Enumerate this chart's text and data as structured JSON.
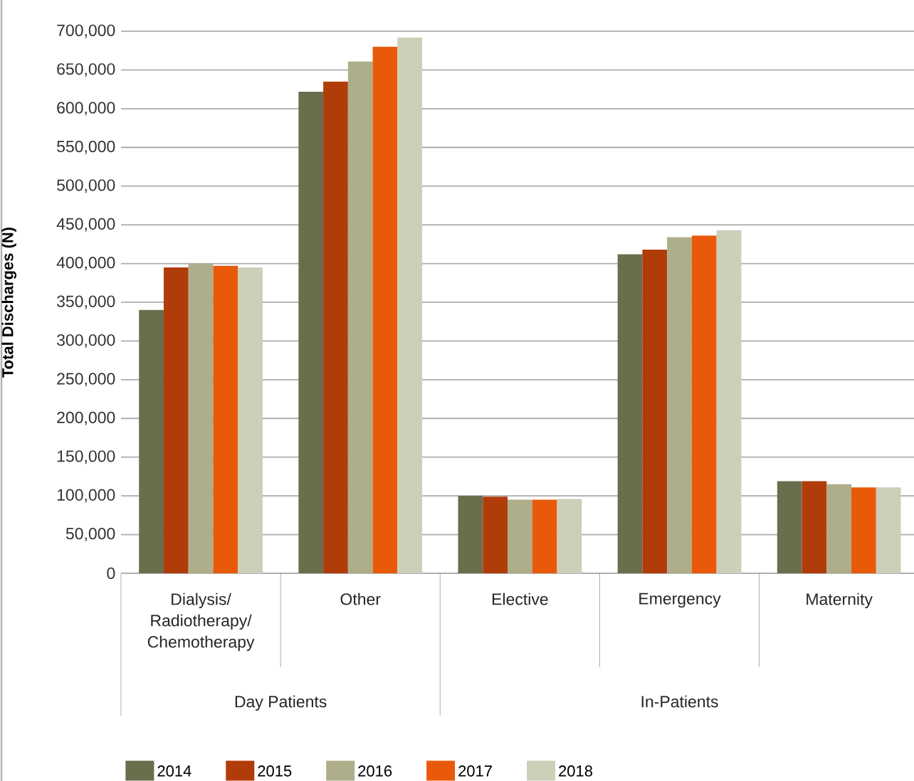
{
  "chart_data": {
    "type": "bar",
    "ylabel": "Total Discharges (N)",
    "categories": [
      "Dialysis/ Radiotherapy/ Chemotherapy",
      "Other",
      "Elective",
      "Emergency",
      "Maternity"
    ],
    "series": [
      {
        "name": "2014",
        "color": "#6b6e4d",
        "values": [
          340000,
          622000,
          100000,
          412000,
          119000
        ]
      },
      {
        "name": "2015",
        "color": "#b03c0a",
        "values": [
          395000,
          635000,
          99000,
          418000,
          119000
        ]
      },
      {
        "name": "2016",
        "color": "#aeae8a",
        "values": [
          400000,
          661000,
          95000,
          434000,
          115000
        ]
      },
      {
        "name": "2017",
        "color": "#e85a0a",
        "values": [
          397000,
          680000,
          95000,
          436000,
          111000
        ]
      },
      {
        "name": "2018",
        "color": "#cdcfb8",
        "values": [
          395000,
          692000,
          96000,
          443000,
          111000
        ]
      }
    ],
    "ylim": [
      0,
      700000
    ],
    "yticks": [
      0,
      {
        "value": 50000,
        "label": "50,000"
      },
      {
        "value": 100000,
        "label": "100,000"
      },
      {
        "value": 150000,
        "label": "150,000"
      },
      {
        "value": 200000,
        "label": "200,000"
      },
      {
        "value": 250000,
        "label": "250,000"
      },
      {
        "value": 300000,
        "label": "300,000"
      },
      {
        "value": 350000,
        "label": "350,000"
      },
      {
        "value": 400000,
        "label": "400,000"
      },
      {
        "value": 450000,
        "label": "450,000"
      },
      {
        "value": 500000,
        "label": "500,000"
      },
      {
        "value": 550000,
        "label": "550,000"
      },
      {
        "value": 600000,
        "label": "600,000"
      },
      {
        "value": 650000,
        "label": "650,000"
      },
      {
        "value": 700000,
        "label": "700,000"
      }
    ],
    "annotations": [
      "Day Patients",
      "In-Patients"
    ],
    "grid": "y",
    "legend": "bottom"
  }
}
